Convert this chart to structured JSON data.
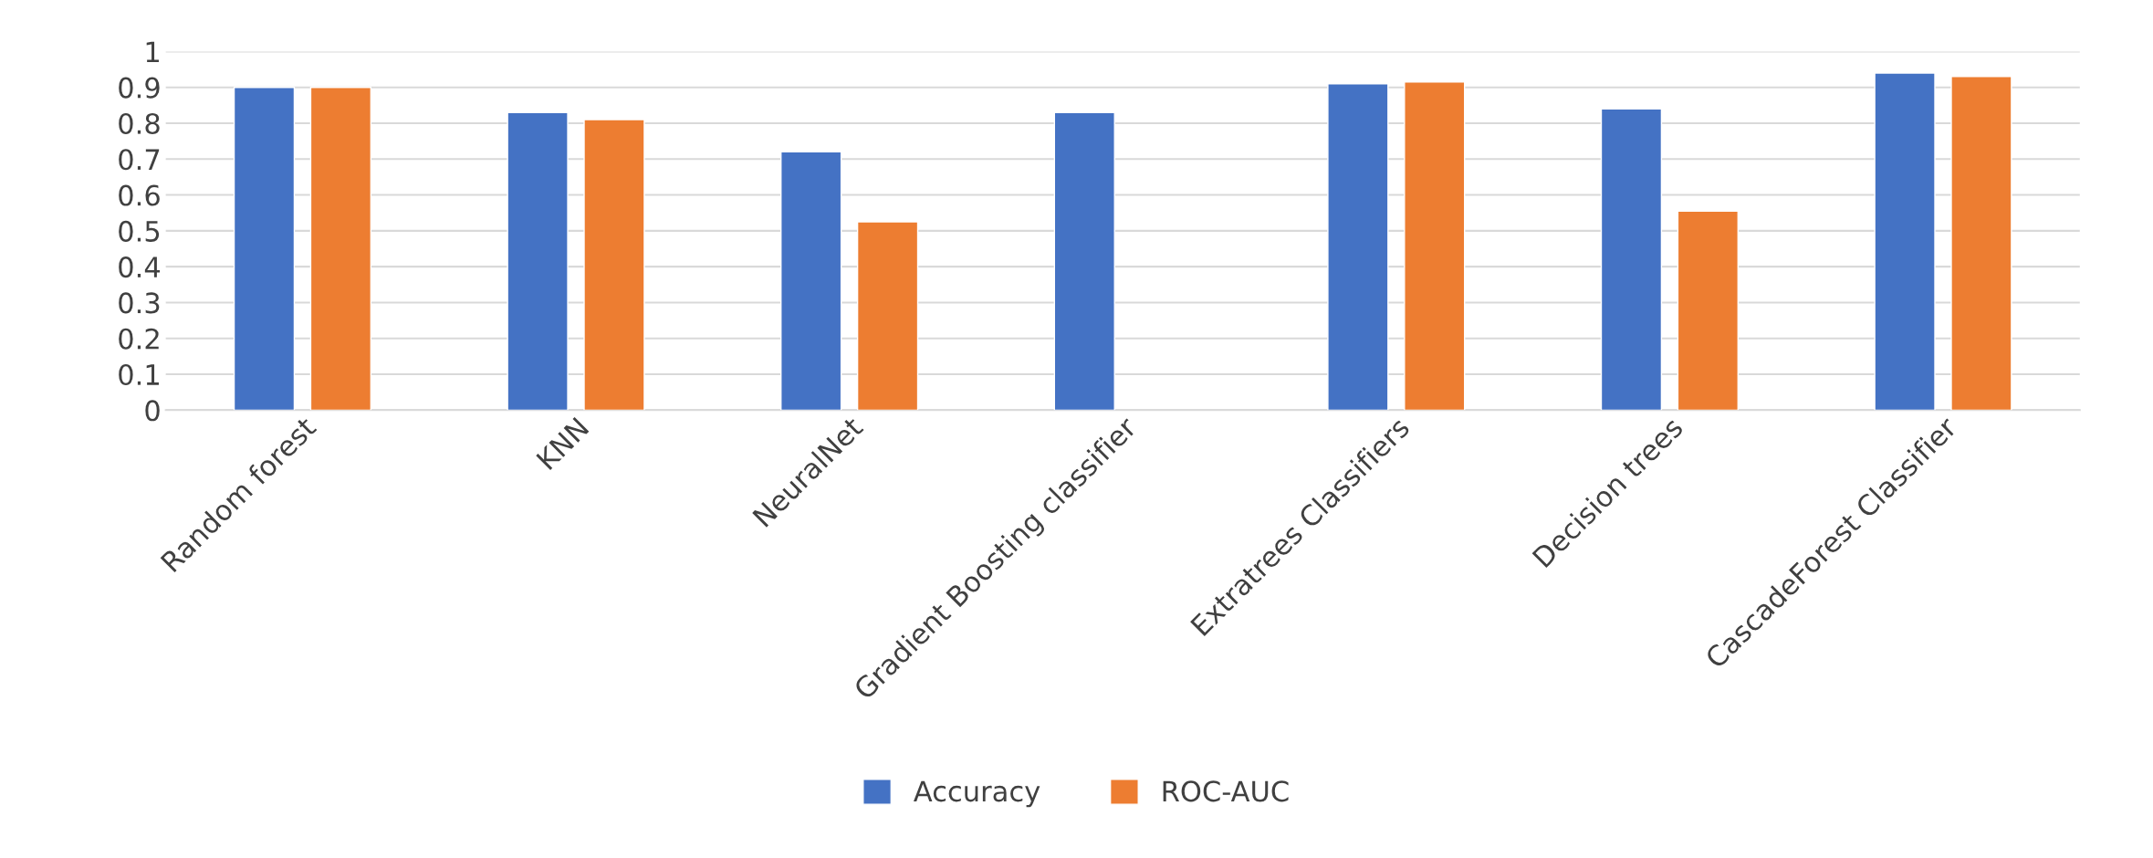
{
  "chart_data": {
    "type": "bar",
    "categories": [
      "Random forest",
      "KNN",
      "NeuralNet",
      "Gradient Boosting classifier",
      "Extratrees Classifiers",
      "Decision trees",
      "CascadeForest Classifier"
    ],
    "series": [
      {
        "name": "Accuracy",
        "color": "#4472c4",
        "values": [
          0.9,
          0.83,
          0.72,
          0.83,
          0.91,
          0.84,
          0.94
        ]
      },
      {
        "name": "ROC-AUC",
        "color": "#ed7d31",
        "values": [
          0.9,
          0.81,
          0.525,
          null,
          0.915,
          0.555,
          0.93
        ]
      }
    ],
    "ylim": [
      0,
      1
    ],
    "yticks": [
      0,
      0.1,
      0.2,
      0.3,
      0.4,
      0.5,
      0.6,
      0.7,
      0.8,
      0.9,
      1
    ],
    "grid": "y",
    "legend": "bottom"
  }
}
